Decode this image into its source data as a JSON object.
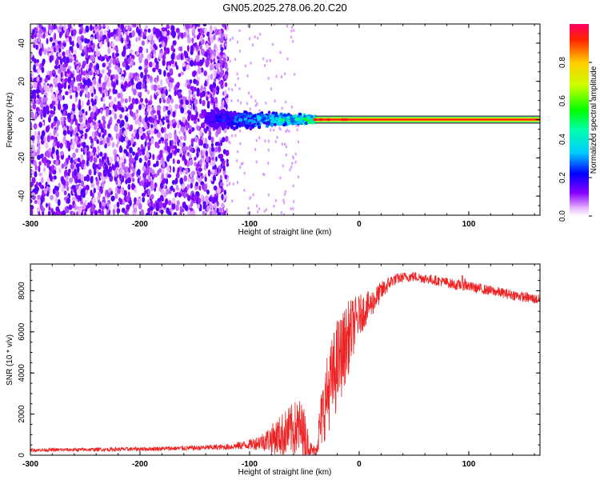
{
  "title": "GN05.2025.278.06.20.C20",
  "chart_data": [
    {
      "type": "heatmap",
      "title": "",
      "xlabel": "Height of straight line (km)",
      "ylabel": "Frequency (Hz)",
      "xlim": [
        -300,
        165
      ],
      "ylim": [
        -50,
        50
      ],
      "x_ticks": [
        -300,
        -200,
        -100,
        0,
        100
      ],
      "x_tick_labels": [
        "-300",
        "-200",
        "-100",
        "0",
        "100"
      ],
      "y_ticks": [
        -40,
        -20,
        0,
        20,
        40
      ],
      "y_tick_labels": [
        "-40",
        "-20",
        "0",
        "20",
        "40"
      ],
      "regions": [
        {
          "x_range": [
            -300,
            -120
          ],
          "freq_range": [
            -50,
            50
          ],
          "amplitude": 0.1,
          "description": "noise"
        },
        {
          "x_range": [
            -140,
            -40
          ],
          "freq_range": [
            -8,
            6
          ],
          "amplitude": 0.4,
          "description": "signal emergence"
        },
        {
          "x_range": [
            -40,
            165
          ],
          "freq_range": [
            -1,
            1
          ],
          "amplitude": 0.85,
          "description": "stable carrier"
        }
      ],
      "colorbar": {
        "label": "Normalized spectral amplitude",
        "range": [
          0,
          1
        ],
        "ticks": [
          0.0,
          0.2,
          0.4,
          0.6,
          0.8
        ],
        "tick_labels": [
          "0.0",
          "0.2",
          "0.4",
          "0.6",
          "0.8"
        ]
      }
    },
    {
      "type": "line",
      "title": "",
      "xlabel": "Height of straight line (km)",
      "ylabel": "SNR (10 * v/v)",
      "xlim": [
        -300,
        165
      ],
      "ylim": [
        0,
        9300
      ],
      "x_ticks": [
        -300,
        -200,
        -100,
        0,
        100
      ],
      "x_tick_labels": [
        "-300",
        "-200",
        "-100",
        "0",
        "100"
      ],
      "y_ticks": [
        0,
        2000,
        4000,
        6000,
        8000
      ],
      "y_tick_labels": [
        "0",
        "2000",
        "4000",
        "6000",
        "8000"
      ],
      "series": [
        {
          "name": "SNR",
          "color": "#ee2222",
          "x": [
            -300,
            -250,
            -200,
            -150,
            -120,
            -100,
            -90,
            -80,
            -70,
            -60,
            -55,
            -50,
            -45,
            -40,
            -35,
            -30,
            -25,
            -20,
            -15,
            -10,
            -5,
            0,
            10,
            20,
            30,
            40,
            50,
            60,
            70,
            80,
            90,
            95,
            100,
            110,
            120,
            130,
            140,
            150,
            160,
            165
          ],
          "values": [
            250,
            270,
            300,
            350,
            400,
            520,
            650,
            800,
            1000,
            1250,
            1350,
            1000,
            300,
            150,
            1600,
            2800,
            3600,
            4400,
            5000,
            5700,
            6300,
            6800,
            7300,
            7950,
            8500,
            8650,
            8700,
            8600,
            8500,
            8400,
            8250,
            8400,
            8200,
            8100,
            8000,
            7900,
            7800,
            7700,
            7600,
            7550
          ],
          "noise_amplitude": [
            80,
            90,
            100,
            120,
            150,
            250,
            400,
            700,
            1100,
            1300,
            1500,
            1300,
            400,
            300,
            1400,
            1900,
            2100,
            2300,
            2000,
            1800,
            1400,
            1000,
            700,
            500,
            300,
            250,
            250,
            250,
            250,
            250,
            250,
            400,
            250,
            250,
            250,
            250,
            250,
            250,
            250,
            250
          ]
        }
      ]
    }
  ]
}
